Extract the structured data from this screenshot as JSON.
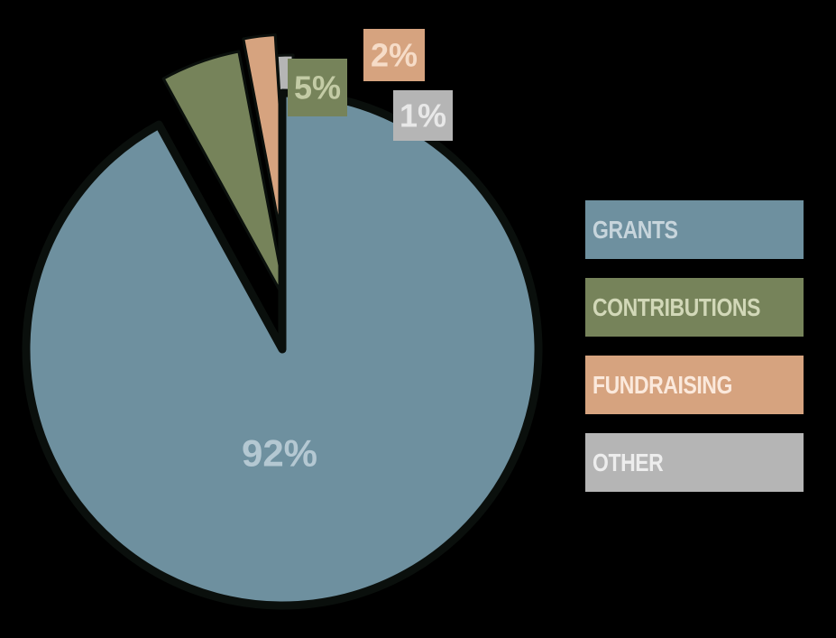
{
  "chart_data": {
    "type": "pie",
    "title": "",
    "slices": [
      {
        "name": "GRANTS",
        "value": 92,
        "label": "92%",
        "color": "#6e909f",
        "label_color": "#b4c8d2"
      },
      {
        "name": "CONTRIBUTIONS",
        "value": 5,
        "label": "5%",
        "color": "#76835a",
        "label_color": "#c3cba5"
      },
      {
        "name": "FUNDRAISING",
        "value": 2,
        "label": "2%",
        "color": "#d6a37f",
        "label_color": "#f6dcc8"
      },
      {
        "name": "OTHER",
        "value": 1,
        "label": "1%",
        "color": "#b5b5b5",
        "label_color": "#e8e8e8"
      }
    ],
    "exploded": [
      "CONTRIBUTIONS",
      "FUNDRAISING",
      "OTHER"
    ],
    "legend_placement": "right",
    "background": "#000000"
  },
  "legend": {
    "items": [
      {
        "label": "GRANTS",
        "color": "#6e909f",
        "text_color": "#c7d5dc"
      },
      {
        "label": "CONTRIBUTIONS",
        "color": "#76835a",
        "text_color": "#d2d8b8"
      },
      {
        "label": "FUNDRAISING",
        "color": "#d6a37f",
        "text_color": "#fbe9dc"
      },
      {
        "label": "OTHER",
        "color": "#b5b5b5",
        "text_color": "#ededed"
      }
    ]
  }
}
